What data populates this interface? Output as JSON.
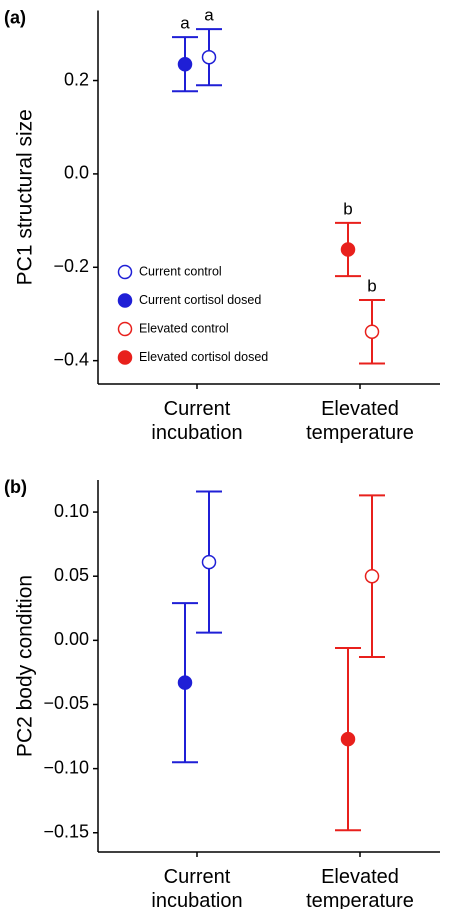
{
  "chart_data": [
    {
      "type": "errorbar",
      "panel_label": "(a)",
      "y_label": "PC1 structural size",
      "categories": [
        "Current incubation",
        "Elevated temperature"
      ],
      "ylim": [
        -0.45,
        0.35
      ],
      "yticks": [
        {
          "value": -0.4,
          "label": "−0.4"
        },
        {
          "value": -0.2,
          "label": "−0.2"
        },
        {
          "value": 0,
          "label": "0.0"
        },
        0.2
      ],
      "legend": "lower left",
      "series": [
        {
          "name": "Current control",
          "color": "#1f1fd6",
          "filled": false,
          "values": [
            0.25,
            null
          ],
          "errors": [
            0.06,
            null
          ],
          "annotations": [
            "a",
            null
          ]
        },
        {
          "name": "Current cortisol dosed",
          "color": "#1f1fd6",
          "filled": true,
          "values": [
            0.235,
            null
          ],
          "errors": [
            0.058,
            null
          ],
          "annotations": [
            "a",
            null
          ]
        },
        {
          "name": "Elevated control",
          "color": "#e8201c",
          "filled": false,
          "values": [
            null,
            -0.338
          ],
          "errors": [
            null,
            0.068
          ],
          "annotations": [
            null,
            "b"
          ]
        },
        {
          "name": "Elevated cortisol dosed",
          "color": "#e8201c",
          "filled": true,
          "values": [
            null,
            -0.162
          ],
          "errors": [
            null,
            0.057
          ],
          "annotations": [
            null,
            "b"
          ]
        }
      ]
    },
    {
      "type": "errorbar",
      "panel_label": "(b)",
      "y_label": "PC2 body condition",
      "categories": [
        "Current incubation",
        "Elevated temperature"
      ],
      "ylim": [
        -0.165,
        0.125
      ],
      "yticks": [
        {
          "value": -0.15,
          "label": "−0.15"
        },
        {
          "value": -0.1,
          "label": "−0.10"
        },
        {
          "value": -0.05,
          "label": "−0.05"
        },
        {
          "value": 0,
          "label": "0.00"
        },
        0.05,
        {
          "value": 0.1,
          "label": "0.10"
        }
      ],
      "series": [
        {
          "color": "#1f1fd6",
          "filled": false,
          "values": [
            0.061,
            null
          ],
          "errors": [
            0.055,
            null
          ]
        },
        {
          "color": "#1f1fd6",
          "filled": true,
          "values": [
            -0.033,
            null
          ],
          "errors": [
            0.062,
            null
          ]
        },
        {
          "color": "#e8201c",
          "filled": false,
          "values": [
            null,
            0.05
          ],
          "errors": [
            null,
            0.063
          ]
        },
        {
          "color": "#e8201c",
          "filled": true,
          "values": [
            null,
            -0.077
          ],
          "errors": [
            null,
            0.071
          ]
        }
      ]
    }
  ]
}
